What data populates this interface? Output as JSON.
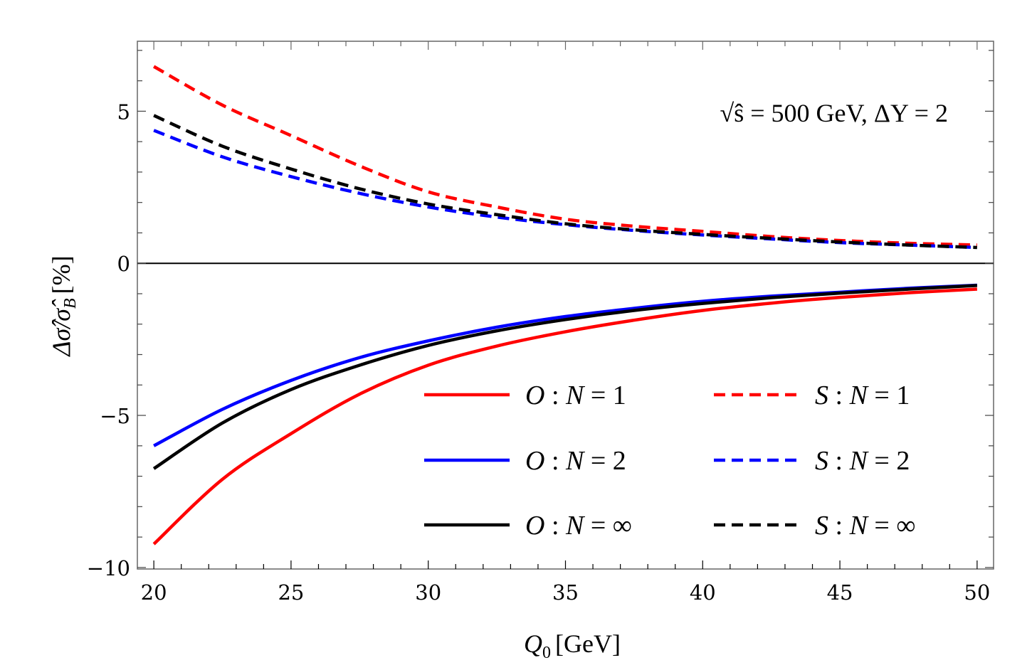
{
  "chart_data": {
    "type": "line",
    "title": "",
    "xlabel": "Q_0 [GeV]",
    "xlabel_main": "Q",
    "xlabel_sub": "0",
    "xlabel_unit": "[GeV]",
    "ylabel": "Δσ̂/σ̂_B [%]",
    "ylabel_main": "Δσ̂/σ̂",
    "ylabel_sub": "B",
    "ylabel_unit": "[%]",
    "xlim": [
      19.4,
      50.6
    ],
    "ylim": [
      -10.05,
      7.3
    ],
    "xticks": [
      20,
      25,
      30,
      35,
      40,
      45,
      50
    ],
    "xtick_labels": [
      "20",
      "25",
      "30",
      "35",
      "40",
      "45",
      "50"
    ],
    "x_minor_step": 1,
    "yticks": [
      -10,
      -5,
      0,
      5
    ],
    "ytick_labels": [
      "−10",
      "−5",
      "0",
      "5"
    ],
    "y_minor_step": 1,
    "grid": false,
    "zero_line": true,
    "annotation": "√ŝ = 500 GeV, ΔY = 2",
    "legend_placement": "bottom-right",
    "legend_columns": 2,
    "x": [
      20,
      22.5,
      25,
      27.5,
      30,
      32.5,
      35,
      37.5,
      40,
      42.5,
      45,
      47.5,
      50
    ],
    "series": [
      {
        "name": "O : N = 1",
        "label_prefix": "O",
        "label_value": "1",
        "color": "#ff0000",
        "dash": "solid",
        "values": [
          -9.23,
          -7.1,
          -5.6,
          -4.3,
          -3.35,
          -2.72,
          -2.25,
          -1.87,
          -1.55,
          -1.31,
          -1.12,
          -0.97,
          -0.85
        ]
      },
      {
        "name": "S : N = 1",
        "label_prefix": "S",
        "label_value": "1",
        "color": "#ff0000",
        "dash": "dashed",
        "values": [
          6.47,
          5.2,
          4.2,
          3.2,
          2.35,
          1.85,
          1.45,
          1.22,
          1.05,
          0.88,
          0.75,
          0.66,
          0.6
        ]
      },
      {
        "name": "O : N = 2",
        "label_prefix": "O",
        "label_value": "2",
        "color": "#0000ff",
        "dash": "solid",
        "values": [
          -6.0,
          -4.8,
          -3.85,
          -3.1,
          -2.55,
          -2.1,
          -1.75,
          -1.48,
          -1.25,
          -1.08,
          -0.95,
          -0.82,
          -0.72
        ]
      },
      {
        "name": "S : N = 2",
        "label_prefix": "S",
        "label_value": "2",
        "color": "#0000ff",
        "dash": "dashed",
        "values": [
          4.37,
          3.5,
          2.85,
          2.3,
          1.85,
          1.52,
          1.27,
          1.08,
          0.93,
          0.8,
          0.68,
          0.6,
          0.52
        ]
      },
      {
        "name": "O : N = ∞",
        "label_prefix": "O",
        "label_value": "∞",
        "color": "#000000",
        "dash": "solid",
        "values": [
          -6.75,
          -5.25,
          -4.15,
          -3.35,
          -2.7,
          -2.22,
          -1.85,
          -1.55,
          -1.32,
          -1.13,
          -0.98,
          -0.85,
          -0.73
        ]
      },
      {
        "name": "S : N = ∞",
        "label_prefix": "S",
        "label_value": "∞",
        "color": "#000000",
        "dash": "dashed",
        "values": [
          4.86,
          3.85,
          3.1,
          2.45,
          1.95,
          1.6,
          1.3,
          1.1,
          0.95,
          0.82,
          0.7,
          0.6,
          0.52
        ]
      }
    ],
    "legend_order": [
      0,
      1,
      2,
      3,
      4,
      5
    ]
  }
}
